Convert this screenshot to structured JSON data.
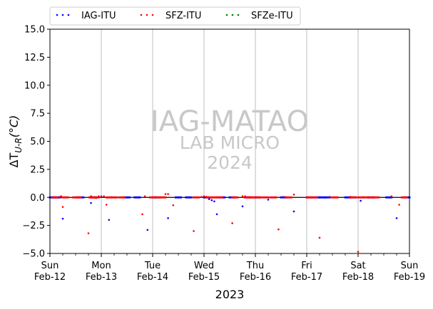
{
  "chart_data": {
    "type": "scatter",
    "ylabel": "ΔT_{U-R}(°C)",
    "xlabel": "2023",
    "ylim": [
      -5.0,
      15.0
    ],
    "yticks": [
      "−5.0",
      "−2.5",
      "0.0",
      "2.5",
      "5.0",
      "7.5",
      "10.0",
      "12.5",
      "15.0"
    ],
    "ytick_values": [
      -5.0,
      -2.5,
      0.0,
      2.5,
      5.0,
      7.5,
      10.0,
      12.5,
      15.0
    ],
    "xlim": [
      0,
      7
    ],
    "xticks": [
      {
        "day": "Sun",
        "date": "Feb-12"
      },
      {
        "day": "Mon",
        "date": "Feb-13"
      },
      {
        "day": "Tue",
        "date": "Feb-14"
      },
      {
        "day": "Wed",
        "date": "Feb-15"
      },
      {
        "day": "Thu",
        "date": "Feb-16"
      },
      {
        "day": "Fri",
        "date": "Feb-17"
      },
      {
        "day": "Sat",
        "date": "Feb-18"
      },
      {
        "day": "Sun",
        "date": "Feb-19"
      }
    ],
    "grid": "vertical",
    "legend_position": "top",
    "watermark": {
      "line1": "IAG-MATAO",
      "line2": "LAB MICRO",
      "line3": "2024"
    },
    "series": [
      {
        "name": "IAG-ITU",
        "color": "#0000ff",
        "x": [
          0.05,
          0.1,
          0.15,
          0.25,
          0.6,
          0.8,
          0.85,
          0.9,
          1.0,
          1.15,
          1.5,
          1.7,
          1.9,
          2.05,
          2.3,
          2.5,
          2.7,
          3.05,
          3.1,
          3.15,
          3.2,
          3.25,
          3.35,
          3.55,
          3.75,
          3.85,
          4.05,
          4.25,
          4.55,
          4.75,
          5.05,
          5.2,
          5.3,
          5.4,
          5.8,
          5.9,
          6.05,
          6.25,
          6.6,
          6.75,
          6.95
        ],
        "y": [
          0.0,
          0.0,
          0.0,
          -1.9,
          0.0,
          -0.5,
          0.0,
          -0.05,
          0.05,
          -2.0,
          0.0,
          0.0,
          -2.9,
          0.0,
          -1.85,
          0.0,
          0.0,
          0.0,
          -0.15,
          -0.25,
          -0.35,
          -1.5,
          0.0,
          0.0,
          -0.8,
          0.0,
          0.0,
          -0.2,
          0.0,
          -1.25,
          0.0,
          0.0,
          0.0,
          0.0,
          0.0,
          0.0,
          -0.3,
          0.0,
          0.0,
          -1.85,
          0.0
        ]
      },
      {
        "name": "SFZ-ITU",
        "color": "#ff0000",
        "x": [
          0.1,
          0.2,
          0.22,
          0.25,
          0.3,
          0.5,
          0.55,
          0.75,
          0.8,
          0.82,
          0.85,
          0.9,
          0.95,
          1.0,
          1.05,
          1.1,
          1.15,
          1.25,
          1.4,
          1.8,
          1.85,
          2.0,
          2.1,
          2.2,
          2.25,
          2.3,
          2.4,
          2.8,
          2.85,
          2.95,
          3.0,
          3.05,
          3.1,
          3.2,
          3.3,
          3.55,
          3.6,
          3.75,
          3.8,
          3.85,
          3.9,
          3.95,
          4.05,
          4.2,
          4.35,
          4.45,
          4.55,
          4.65,
          4.75,
          5.05,
          5.15,
          5.25,
          5.45,
          5.55,
          5.85,
          5.9,
          6.0,
          6.05,
          6.15,
          6.25,
          6.35,
          6.65,
          6.8,
          6.9
        ],
        "y": [
          0.0,
          0.05,
          0.1,
          -0.85,
          0.0,
          0.0,
          0.0,
          -3.2,
          0.1,
          0.0,
          0.0,
          0.0,
          0.1,
          0.1,
          0.1,
          -0.65,
          0.0,
          0.0,
          0.0,
          -1.5,
          0.1,
          0.0,
          0.0,
          0.0,
          0.3,
          0.3,
          -0.7,
          -3.0,
          0.0,
          0.05,
          0.1,
          0.05,
          0.0,
          0.0,
          0.0,
          -2.3,
          0.0,
          0.1,
          0.1,
          0.0,
          0.0,
          0.0,
          0.0,
          0.0,
          0.0,
          -2.85,
          0.05,
          0.0,
          0.25,
          0.0,
          0.0,
          -3.6,
          0.05,
          0.0,
          0.05,
          0.0,
          -4.85,
          0.0,
          0.0,
          0.0,
          0.0,
          0.1,
          -0.65,
          0.0
        ]
      },
      {
        "name": "SFZe-ITU",
        "color": "#008000",
        "x": [],
        "y": []
      }
    ]
  }
}
